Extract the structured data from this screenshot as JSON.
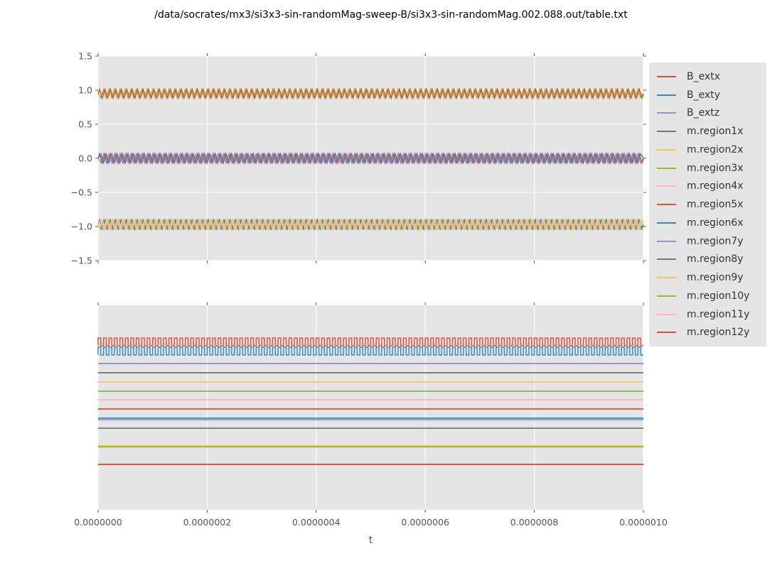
{
  "figure": {
    "title": "/data/socrates/mx3/si3x3-sin-randomMag-sweep-B/si3x3-sin-randomMag.002.088.out/table.txt"
  },
  "palette": {
    "red": "#E24A33",
    "blue": "#348ABD",
    "purple": "#988ED5",
    "gray": "#777777",
    "orange": "#FBC15E",
    "green": "#8EBA42",
    "pink": "#FFB5B8",
    "axes_background": "#E5E5E5",
    "grid": "#FFFFFF",
    "tick_color": "#555555",
    "figure_background": "#FFFFFF"
  },
  "legend": {
    "background": "#E5E5E5",
    "entries": [
      {
        "label": "B_extx",
        "color": "#E24A33"
      },
      {
        "label": "B_exty",
        "color": "#348ABD"
      },
      {
        "label": "B_extz",
        "color": "#988ED5"
      },
      {
        "label": "m.region1x",
        "color": "#777777"
      },
      {
        "label": "m.region2x",
        "color": "#FBC15E"
      },
      {
        "label": "m.region3x",
        "color": "#8EBA42"
      },
      {
        "label": "m.region4x",
        "color": "#FFB5B8"
      },
      {
        "label": "m.region5x",
        "color": "#E24A33"
      },
      {
        "label": "m.region6x",
        "color": "#348ABD"
      },
      {
        "label": "m.region7y",
        "color": "#988ED5"
      },
      {
        "label": "m.region8y",
        "color": "#777777"
      },
      {
        "label": "m.region9y",
        "color": "#FBC15E"
      },
      {
        "label": "m.region10y",
        "color": "#8EBA42"
      },
      {
        "label": "m.region11y",
        "color": "#FFB5B8"
      },
      {
        "label": "m.region12y",
        "color": "#E24A33"
      }
    ]
  },
  "chart_data": [
    {
      "id": "top-subplot",
      "type": "line",
      "xlabel": "",
      "xlim": [
        0,
        1e-06
      ],
      "ylim": [
        -1.5,
        1.5
      ],
      "yticks": [
        1.5,
        1.0,
        0.5,
        0.0,
        -0.5,
        -1.0,
        -1.5
      ],
      "ytick_labels": [
        "1.5",
        "1.0",
        "0.5",
        "0.0",
        "−0.5",
        "−1.0",
        "−1.5"
      ],
      "xticks": [
        0,
        2e-07,
        4e-07,
        6e-07,
        8e-07,
        1e-06
      ],
      "xtick_labels": [],
      "grid": "both",
      "series": [
        {
          "name": "oscillating band near +0.95",
          "waveform": "triangle",
          "center": 0.95,
          "amplitude": 0.062,
          "cycles": 100,
          "layers": [
            "#8EBA42",
            "#E24A33"
          ]
        },
        {
          "name": "oscillating band near 0.0",
          "waveform": "triangle",
          "center": 0.0,
          "amplitude": 0.065,
          "cycles": 100,
          "layers": [
            "#988ED5",
            "#E24A33",
            "#348ABD"
          ]
        },
        {
          "name": "oscillating band near -0.97",
          "waveform": "triangle",
          "center": -0.97,
          "amplitude": 0.065,
          "cycles": 100,
          "layers": [
            "#8EBA42",
            "#348ABD",
            "#FFB5B8",
            "#FBC15E"
          ]
        }
      ]
    },
    {
      "id": "bottom-subplot",
      "type": "line",
      "xlabel": "t",
      "xlim": [
        0,
        1e-06
      ],
      "xticks": [
        0,
        2e-07,
        4e-07,
        6e-07,
        8e-07,
        1e-06
      ],
      "xtick_labels": [
        "0.0000000",
        "0.0000002",
        "0.0000004",
        "0.0000006",
        "0.0000008",
        "0.0000010"
      ],
      "ytick_labels": [],
      "grid": "vertical",
      "series": [
        {
          "name": "square wave upper",
          "waveform": "square",
          "color": "#E24A33",
          "y_high_frac": 0.16,
          "y_low_frac": 0.198,
          "cycles": 100
        },
        {
          "name": "square wave lower",
          "waveform": "square",
          "color": "#348ABD",
          "y_high_frac": 0.205,
          "y_low_frac": 0.243,
          "cycles": 100
        },
        {
          "name": "flat line 1",
          "waveform": "flat",
          "color": "#988ED5",
          "y_frac": 0.285
        },
        {
          "name": "flat line 2",
          "waveform": "flat",
          "color": "#777777",
          "y_frac": 0.33
        },
        {
          "name": "flat line 3",
          "waveform": "flat",
          "color": "#FBC15E",
          "y_frac": 0.375
        },
        {
          "name": "flat line 4",
          "waveform": "flat",
          "color": "#8EBA42",
          "y_frac": 0.42
        },
        {
          "name": "flat line 5",
          "waveform": "flat",
          "color": "#FFB5B8",
          "y_frac": 0.462
        },
        {
          "name": "flat line 6",
          "waveform": "flat",
          "color": "#E24A33",
          "y_frac": 0.507
        },
        {
          "name": "flat line 7",
          "waveform": "flat",
          "color": "#988ED5",
          "y_frac": 0.56
        },
        {
          "name": "flat line 8",
          "waveform": "flat",
          "color": "#348ABD",
          "y_frac": 0.552
        },
        {
          "name": "flat line 9",
          "waveform": "flat",
          "color": "#777777",
          "y_frac": 0.601
        },
        {
          "name": "flat line 10",
          "waveform": "flat",
          "color": "#FBC15E",
          "y_frac": 0.687
        },
        {
          "name": "flat line 11",
          "waveform": "flat",
          "color": "#8EBA42",
          "y_frac": 0.692
        },
        {
          "name": "flat line 12",
          "waveform": "flat",
          "color": "#E24A33",
          "y_frac": 0.778
        }
      ]
    }
  ]
}
